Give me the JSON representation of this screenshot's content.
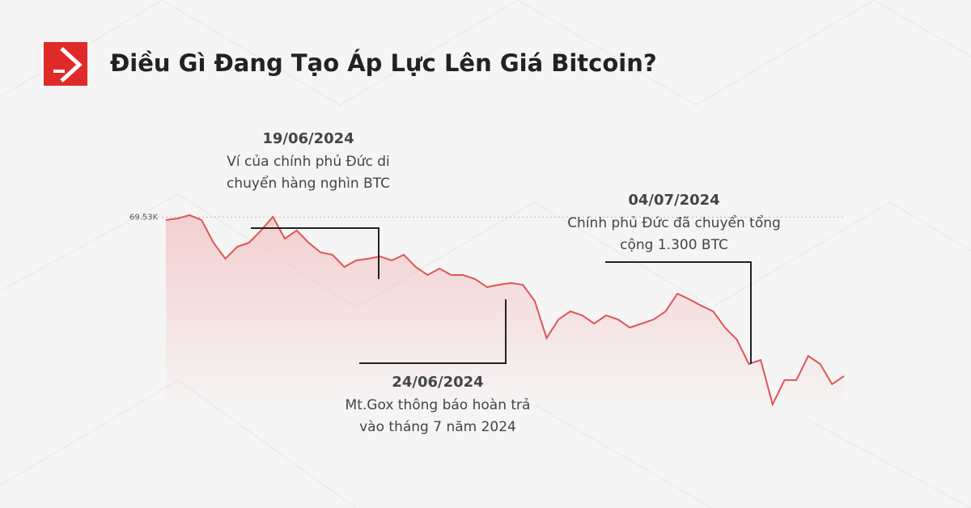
{
  "chart_data": {
    "type": "line",
    "title": "Điều Gì Đang Tạo Áp Lực Lên Giá Bitcoin?",
    "series": [
      {
        "color": "#e05555",
        "values": [
          69.3,
          69.43,
          69.69,
          69.3,
          67.5,
          66.22,
          67.18,
          67.5,
          68.47,
          69.56,
          67.82,
          68.47,
          67.5,
          66.73,
          66.54,
          65.57,
          66.09,
          66.22,
          66.41,
          66.09,
          66.54,
          65.57,
          64.93,
          65.44,
          64.93,
          64.93,
          64.61,
          63.97,
          64.16,
          64.29,
          64.16,
          62.87,
          59.92,
          61.4,
          62.04,
          61.72,
          61.07,
          61.72,
          61.4,
          60.75,
          61.07,
          61.4,
          62.04,
          63.45,
          63.0,
          62.49,
          62.04,
          60.75,
          59.79,
          57.86,
          58.18,
          54.65,
          56.58,
          56.58,
          58.5,
          57.86,
          56.25,
          56.9
        ]
      }
    ],
    "ylim": [
      54,
      72
    ],
    "yticks": [
      {
        "value": 69.53,
        "label": "69.53K"
      }
    ],
    "annotations": [
      {
        "date": "19/06/2024",
        "lines": [
          "Ví của chính phủ Đức di",
          "chuyển hàng nghìn BTC"
        ]
      },
      {
        "date": "24/06/2024",
        "lines": [
          "Mt.Gox thông báo hoàn trả",
          "vào tháng 7 năm 2024"
        ]
      },
      {
        "date": "04/07/2024",
        "lines": [
          "Chính phủ Đức đã chuyển tổng",
          "cộng 1.300 BTC"
        ]
      }
    ]
  }
}
